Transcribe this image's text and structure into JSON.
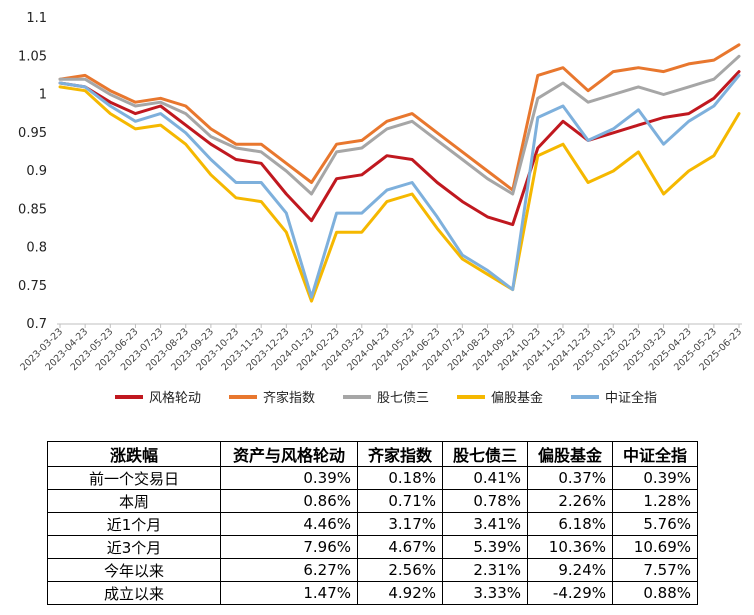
{
  "chart_data": {
    "type": "line",
    "ylim": [
      0.7,
      1.1
    ],
    "yticks": [
      "0.7",
      "0.75",
      "0.8",
      "0.85",
      "0.9",
      "0.95",
      "1",
      "1.05",
      "1.1"
    ],
    "x": [
      "2023-03-23",
      "2023-04-23",
      "2023-05-23",
      "2023-06-23",
      "2023-07-23",
      "2023-08-23",
      "2023-09-23",
      "2023-10-23",
      "2023-11-23",
      "2023-12-23",
      "2024-01-23",
      "2024-02-23",
      "2024-03-23",
      "2024-04-23",
      "2024-05-23",
      "2024-06-23",
      "2024-07-23",
      "2024-08-23",
      "2024-09-23",
      "2024-10-23",
      "2024-11-23",
      "2024-12-23",
      "2025-01-23",
      "2025-02-23",
      "2025-03-23",
      "2025-04-23",
      "2025-05-23",
      "2025-06-23"
    ],
    "grid": false,
    "legend_position": "bottom",
    "series": [
      {
        "name": "风格轮动",
        "color": "#c0181f",
        "values": [
          1.015,
          1.01,
          0.99,
          0.975,
          0.985,
          0.96,
          0.935,
          0.915,
          0.91,
          0.87,
          0.835,
          0.89,
          0.895,
          0.92,
          0.915,
          0.885,
          0.86,
          0.84,
          0.83,
          0.93,
          0.965,
          0.94,
          0.95,
          0.96,
          0.97,
          0.975,
          0.995,
          1.03
        ]
      },
      {
        "name": "齐家指数",
        "color": "#e8772e",
        "values": [
          1.02,
          1.025,
          1.005,
          0.99,
          0.995,
          0.985,
          0.955,
          0.935,
          0.935,
          0.91,
          0.885,
          0.935,
          0.94,
          0.965,
          0.975,
          0.95,
          0.925,
          0.9,
          0.875,
          1.025,
          1.035,
          1.005,
          1.03,
          1.035,
          1.03,
          1.04,
          1.045,
          1.065
        ]
      },
      {
        "name": "股七债三",
        "color": "#a6a6a6",
        "values": [
          1.02,
          1.02,
          1.0,
          0.985,
          0.99,
          0.975,
          0.945,
          0.93,
          0.925,
          0.9,
          0.87,
          0.925,
          0.93,
          0.955,
          0.965,
          0.94,
          0.915,
          0.89,
          0.87,
          0.995,
          1.015,
          0.99,
          1.0,
          1.01,
          1.0,
          1.01,
          1.02,
          1.05
        ]
      },
      {
        "name": "偏股基金",
        "color": "#f5b800",
        "values": [
          1.01,
          1.005,
          0.975,
          0.955,
          0.96,
          0.935,
          0.895,
          0.865,
          0.86,
          0.82,
          0.73,
          0.82,
          0.82,
          0.86,
          0.87,
          0.825,
          0.785,
          0.765,
          0.745,
          0.92,
          0.935,
          0.885,
          0.9,
          0.925,
          0.87,
          0.9,
          0.92,
          0.975
        ]
      },
      {
        "name": "中证全指",
        "color": "#7eb0dc",
        "values": [
          1.015,
          1.01,
          0.985,
          0.965,
          0.975,
          0.95,
          0.915,
          0.885,
          0.885,
          0.845,
          0.735,
          0.845,
          0.845,
          0.875,
          0.885,
          0.84,
          0.79,
          0.77,
          0.745,
          0.97,
          0.985,
          0.94,
          0.955,
          0.98,
          0.935,
          0.965,
          0.985,
          1.025
        ]
      }
    ]
  },
  "table": {
    "headers": [
      "涨跌幅",
      "资产与风格轮动",
      "齐家指数",
      "股七债三",
      "偏股基金",
      "中证全指"
    ],
    "rows": [
      {
        "label": "前一个交易日",
        "values": [
          "0.39%",
          "0.18%",
          "0.41%",
          "0.37%",
          "0.39%"
        ]
      },
      {
        "label": "本周",
        "values": [
          "0.86%",
          "0.71%",
          "0.78%",
          "2.26%",
          "1.28%"
        ]
      },
      {
        "label": "近1个月",
        "values": [
          "4.46%",
          "3.17%",
          "3.41%",
          "6.18%",
          "5.76%"
        ]
      },
      {
        "label": "近3个月",
        "values": [
          "7.96%",
          "4.67%",
          "5.39%",
          "10.36%",
          "10.69%"
        ]
      },
      {
        "label": "今年以来",
        "values": [
          "6.27%",
          "2.56%",
          "2.31%",
          "9.24%",
          "7.57%"
        ]
      },
      {
        "label": "成立以来",
        "values": [
          "1.47%",
          "4.92%",
          "3.33%",
          "-4.29%",
          "0.88%"
        ]
      }
    ]
  }
}
